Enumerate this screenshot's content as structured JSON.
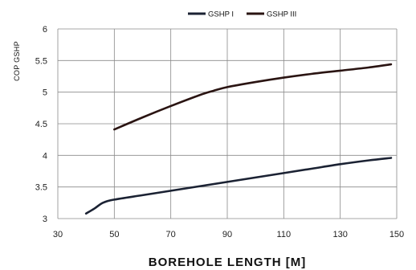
{
  "chart_data": {
    "type": "line",
    "title": "",
    "xlabel": "BOREHOLE  LENGTH  [M]",
    "ylabel": "COP GSHP",
    "xlim": [
      30,
      150
    ],
    "ylim": [
      3,
      6
    ],
    "x_ticks": [
      "30",
      "50",
      "70",
      "90",
      "110",
      "130",
      "150"
    ],
    "y_ticks": [
      "3",
      "3.5",
      "4",
      "4.5",
      "5",
      "5.5",
      "6"
    ],
    "grid": true,
    "legend_position": "top-center",
    "series": [
      {
        "name": "GSHP I",
        "color": "#1b2233",
        "x": [
          40,
          43,
          46,
          50,
          60,
          70,
          80,
          90,
          100,
          110,
          120,
          130,
          140,
          148
        ],
        "y": [
          3.08,
          3.16,
          3.25,
          3.3,
          3.37,
          3.44,
          3.51,
          3.58,
          3.65,
          3.72,
          3.79,
          3.86,
          3.92,
          3.96
        ]
      },
      {
        "name": "GSHP III",
        "color": "#2a1412",
        "x": [
          50,
          60,
          70,
          80,
          85,
          90,
          100,
          110,
          120,
          130,
          140,
          148
        ],
        "y": [
          4.41,
          4.6,
          4.78,
          4.95,
          5.02,
          5.08,
          5.16,
          5.23,
          5.29,
          5.34,
          5.39,
          5.44
        ]
      }
    ]
  }
}
